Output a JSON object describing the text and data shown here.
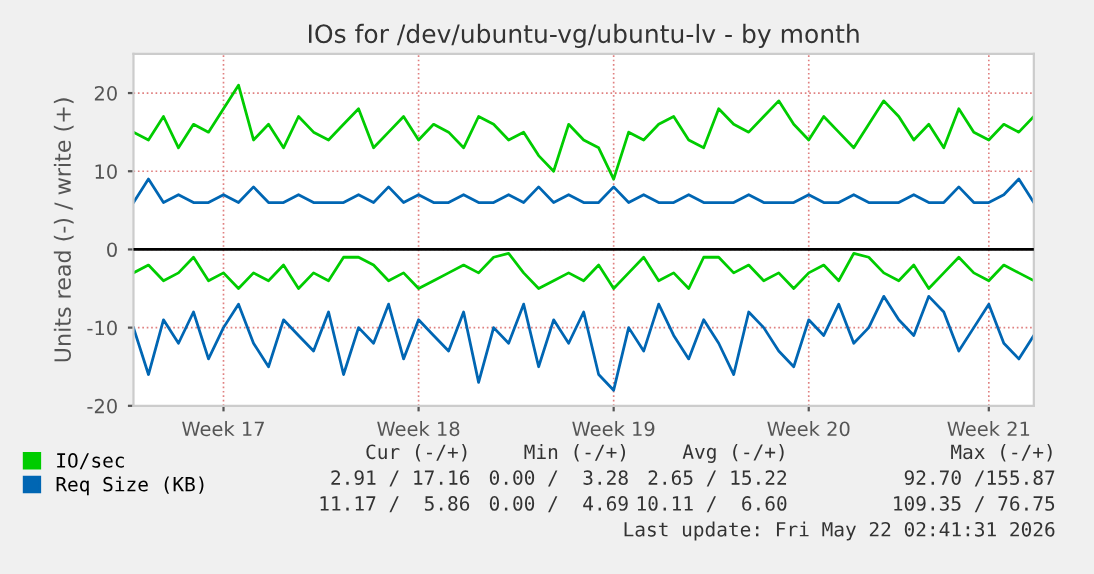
{
  "chart_data": {
    "type": "line",
    "title": "IOs for /dev/ubuntu-vg/ubuntu-lv - by month",
    "ylabel": "Units read (-) / write (+)",
    "categories": [
      null,
      null,
      null,
      null,
      null,
      null,
      "Week 17",
      null,
      null,
      null,
      null,
      null,
      null,
      null,
      null,
      null,
      null,
      null,
      null,
      "Week 18",
      null,
      null,
      null,
      null,
      null,
      null,
      null,
      null,
      null,
      null,
      null,
      null,
      "Week 19",
      null,
      null,
      null,
      null,
      null,
      null,
      null,
      null,
      null,
      null,
      null,
      null,
      "Week 20",
      null,
      null,
      null,
      null,
      null,
      null,
      null,
      null,
      null,
      null,
      null,
      "Week 21",
      null,
      null,
      null
    ],
    "series": [
      {
        "name": "IO/sec",
        "color": "#00cc00",
        "values": [
          15,
          14,
          17,
          13,
          16,
          15,
          18,
          21,
          14,
          16,
          13,
          17,
          15,
          14,
          16,
          18,
          13,
          15,
          17,
          14,
          16,
          15,
          13,
          17,
          16,
          14,
          15,
          12,
          10,
          16,
          14,
          13,
          9,
          15,
          14,
          16,
          17,
          14,
          13,
          18,
          16,
          15,
          17,
          19,
          16,
          14,
          17,
          15,
          13,
          16,
          19,
          17,
          14,
          16,
          13,
          18,
          15,
          14,
          16,
          15,
          17
        ]
      },
      {
        "color": "#00cc00",
        "values": [
          -3,
          -2,
          -4,
          -3,
          -1,
          -4,
          -3,
          -5,
          -3,
          -4,
          -2,
          -5,
          -3,
          -4,
          -1,
          -1,
          -2,
          -4,
          -3,
          -5,
          -4,
          -3,
          -2,
          -3,
          -1,
          -0.5,
          -3,
          -5,
          -4,
          -3,
          -4,
          -2,
          -5,
          -3,
          -1,
          -4,
          -3,
          -5,
          -1,
          -1,
          -3,
          -2,
          -4,
          -3,
          -5,
          -3,
          -2,
          -4,
          -0.5,
          -1,
          -3,
          -4,
          -2,
          -5,
          -3,
          -1,
          -3,
          -4,
          -2,
          -3,
          -4
        ]
      },
      {
        "name": "Req Size (KB)",
        "color": "#0066b3",
        "values": [
          6,
          9,
          6,
          7,
          6,
          6,
          7,
          6,
          8,
          6,
          6,
          7,
          6,
          6,
          6,
          7,
          6,
          8,
          6,
          7,
          6,
          6,
          7,
          6,
          6,
          7,
          6,
          8,
          6,
          7,
          6,
          6,
          8,
          6,
          7,
          6,
          6,
          7,
          6,
          6,
          6,
          7,
          6,
          6,
          6,
          7,
          6,
          6,
          7,
          6,
          6,
          6,
          7,
          6,
          6,
          8,
          6,
          6,
          7,
          9,
          6
        ]
      },
      {
        "color": "#0066b3",
        "values": [
          -10,
          -16,
          -9,
          -12,
          -8,
          -14,
          -10,
          -7,
          -12,
          -15,
          -9,
          -11,
          -13,
          -8,
          -16,
          -10,
          -12,
          -7,
          -14,
          -9,
          -11,
          -13,
          -8,
          -17,
          -10,
          -12,
          -7,
          -15,
          -9,
          -12,
          -8,
          -16,
          -18,
          -10,
          -13,
          -7,
          -11,
          -14,
          -9,
          -12,
          -16,
          -8,
          -10,
          -13,
          -15,
          -9,
          -11,
          -7,
          -12,
          -10,
          -6,
          -9,
          -11,
          -6,
          -8,
          -13,
          -10,
          -7,
          -12,
          -14,
          -11
        ]
      }
    ],
    "ylim": [
      -20,
      25
    ],
    "yticks": [
      -20,
      -10,
      0,
      10,
      20
    ],
    "ref_lines": [
      {
        "axis": "y",
        "value": 0,
        "color": "#000000"
      }
    ],
    "grid": true,
    "legend": "bottom left",
    "marker": "none",
    "line_style": "solid",
    "annotations": [
      "Cur (-/+)",
      "Min (-/+)",
      "Avg (-/+)",
      "Max (-/+)",
      "2.91 / 17.16",
      "0.00 /  3.28",
      "2.65 / 15.22",
      "92.70 /155.87",
      "11.17 /  5.86",
      "0.00 /  4.69",
      "10.11 /  6.60",
      "109.35 / 76.75",
      "Last update: Fri May 22 02:41:31 2026"
    ]
  }
}
